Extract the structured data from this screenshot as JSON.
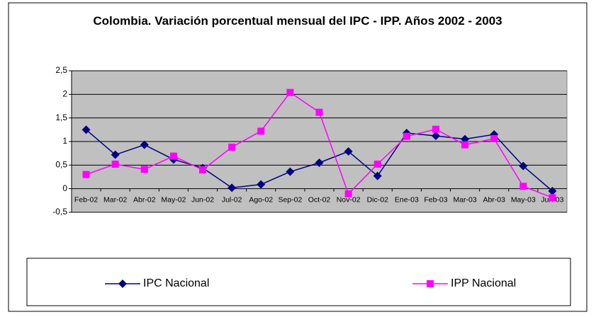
{
  "chart_data": {
    "type": "line",
    "title": "Colombia. Variación porcentual mensual del IPC - IPP. Años 2002 - 2003",
    "categories": [
      "Feb-02",
      "Mar-02",
      "Abr-02",
      "May-02",
      "Jun-02",
      "Jul-02",
      "Ago-02",
      "Sep-02",
      "Oct-02",
      "Nov-02",
      "Dic-02",
      "Ene-03",
      "Feb-03",
      "Mar-03",
      "Abr-03",
      "May-03",
      "Jun-03"
    ],
    "series": [
      {
        "name": "IPC Nacional",
        "color": "#000080",
        "marker": "diamond",
        "values": [
          1.25,
          0.72,
          0.93,
          0.62,
          0.44,
          0.02,
          0.09,
          0.36,
          0.55,
          0.79,
          0.27,
          1.18,
          1.12,
          1.05,
          1.15,
          0.48,
          -0.05
        ]
      },
      {
        "name": "IPP Nacional",
        "color": "#ff00ff",
        "marker": "square",
        "values": [
          0.3,
          0.52,
          0.41,
          0.69,
          0.4,
          0.88,
          1.22,
          2.04,
          1.62,
          -0.11,
          0.52,
          1.11,
          1.26,
          0.93,
          1.06,
          0.05,
          -0.19
        ]
      }
    ],
    "ylim": [
      -0.5,
      2.5
    ],
    "yticks": [
      {
        "value": -0.5,
        "label": "-0,5"
      },
      0,
      {
        "value": 0.5,
        "label": "0,5"
      },
      1,
      {
        "value": 1.5,
        "label": "1,5"
      },
      2,
      {
        "value": 2.5,
        "label": "2,5"
      }
    ],
    "grid": true,
    "plot_color": "#c0c0c0",
    "legend": "bottom"
  }
}
